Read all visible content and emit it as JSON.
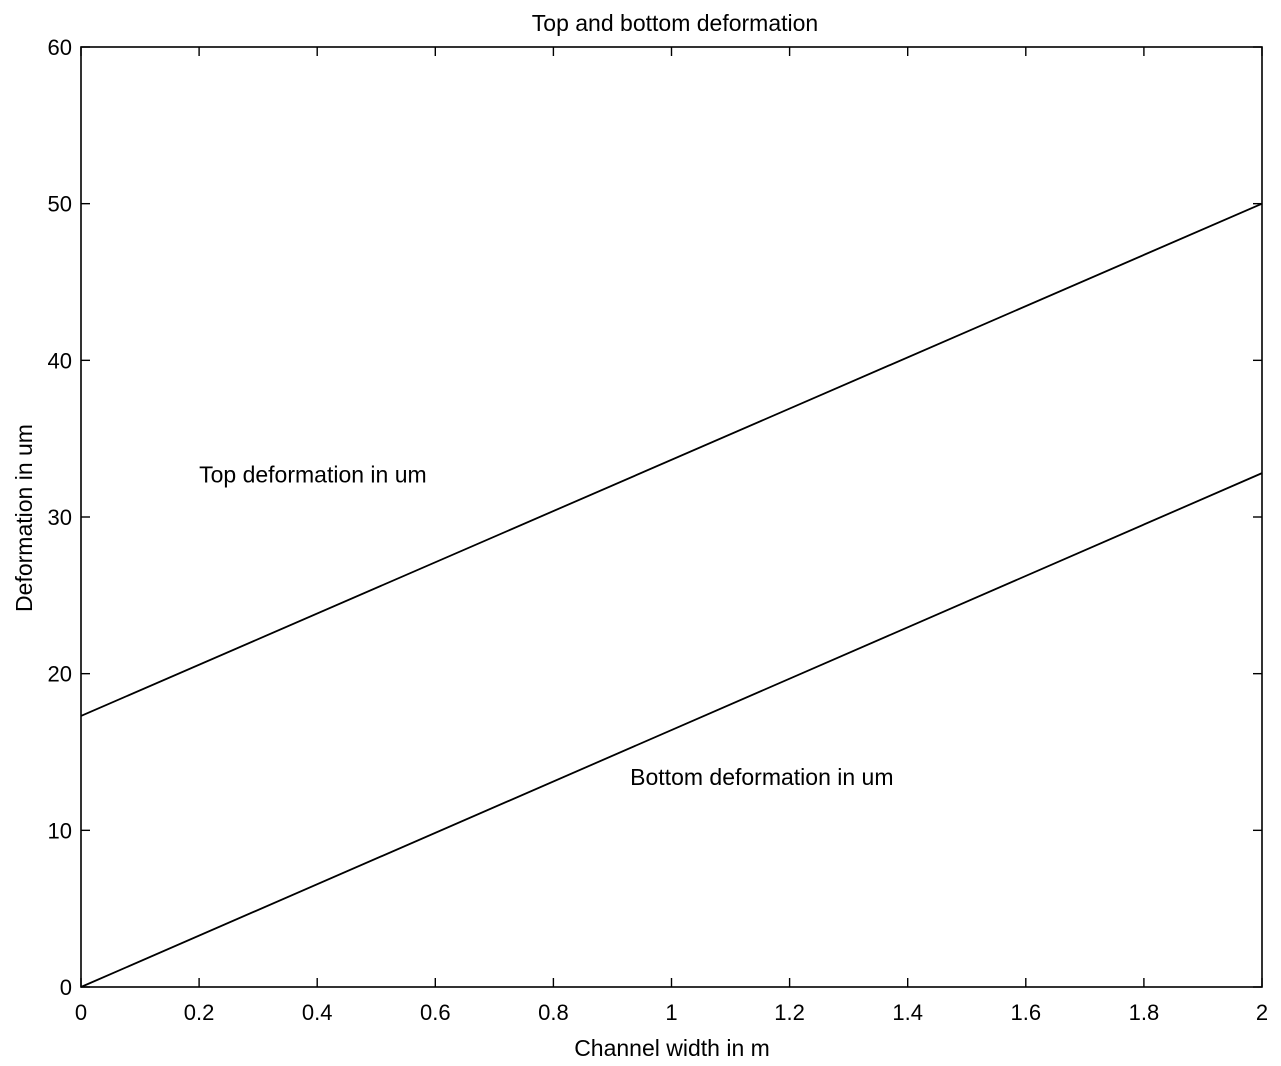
{
  "chart_data": {
    "type": "line",
    "title": "Top and bottom deformation",
    "xlabel": "Channel width in m",
    "ylabel": "Deformation in um",
    "xlim": [
      0,
      2
    ],
    "ylim": [
      0,
      60
    ],
    "x_ticks": [
      0,
      0.2,
      0.4,
      0.6,
      0.8,
      1,
      1.2,
      1.4,
      1.6,
      1.8,
      2
    ],
    "x_tick_labels": [
      "0",
      "0.2",
      "0.4",
      "0.6",
      "0.8",
      "1",
      "1.2",
      "1.4",
      "1.6",
      "1.8",
      "2"
    ],
    "y_ticks": [
      0,
      10,
      20,
      30,
      40,
      50,
      60
    ],
    "y_tick_labels": [
      "0",
      "10",
      "20",
      "30",
      "40",
      "50",
      "60"
    ],
    "grid": false,
    "series": [
      {
        "x": [
          0,
          2
        ],
        "y": [
          17.3,
          50.0
        ]
      },
      {
        "x": [
          0,
          2
        ],
        "y": [
          0.0,
          32.8
        ]
      }
    ],
    "annotations": [
      {
        "text": "Top deformation in um",
        "x": 0.2,
        "y": 32.2
      },
      {
        "text": "Bottom deformation in um",
        "x": 0.93,
        "y": 12.9
      }
    ],
    "colors": {
      "line": "#000000",
      "axes": "#000000"
    }
  }
}
